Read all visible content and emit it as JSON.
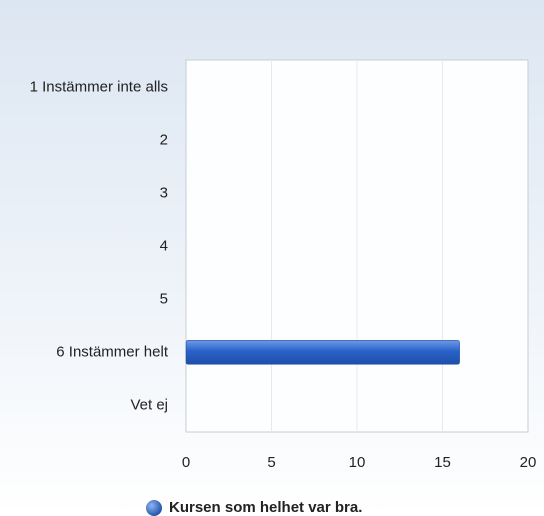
{
  "chart_data": {
    "type": "bar",
    "orientation": "horizontal",
    "categories": [
      "1 Instämmer inte alls",
      "2",
      "3",
      "4",
      "5",
      "6 Instämmer helt",
      "Vet ej"
    ],
    "series": [
      {
        "name": "Kursen som helhet var bra.",
        "color": "#2a62c9",
        "values": [
          0,
          0,
          0,
          0,
          0,
          16,
          0
        ]
      }
    ],
    "xlim": [
      0,
      20
    ],
    "xticks": [
      0,
      5,
      10,
      15,
      20
    ],
    "grid": true,
    "legend": "bottom"
  }
}
